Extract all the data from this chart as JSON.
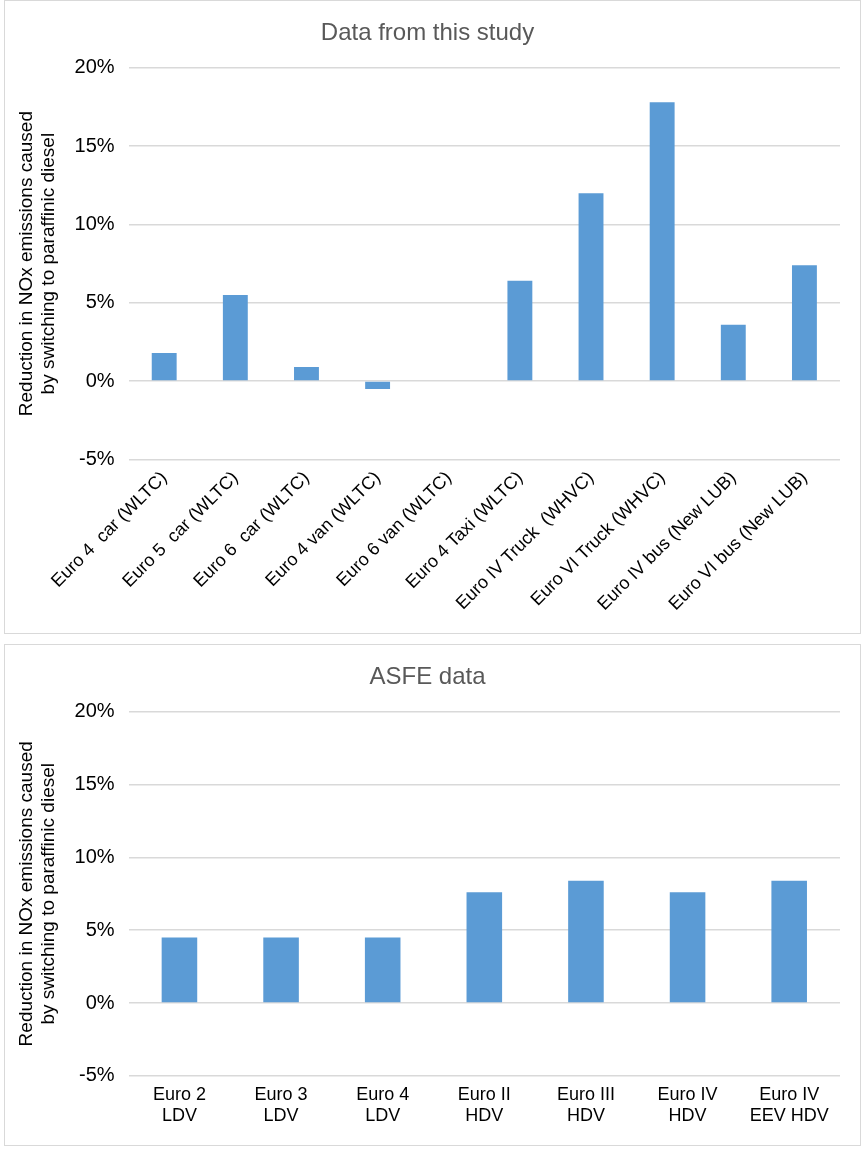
{
  "chart_data": [
    {
      "type": "bar",
      "title": "Data from this study",
      "ylabel": "Reduction in NOx emissions caused by switching to paraffinic diesel",
      "categories": [
        "Euro 4  car (WLTC)",
        "Euro 5  car (WLTC)",
        "Euro 6  car (WLTC)",
        "Euro 4 van (WLTC)",
        "Euro 6 van (WLTC)",
        "Euro 4 Taxi (WLTC)",
        "Euro IV Truck  (WHVC)",
        "Euro VI Truck (WHVC)",
        "Euro IV bus (New LUB)",
        "Euro VI bus (New LUB)"
      ],
      "values": [
        1.8,
        5.5,
        0.9,
        -0.5,
        null,
        6.4,
        12.0,
        17.8,
        3.6,
        7.4
      ],
      "color": "#5b9bd5",
      "ylim": [
        -5,
        20
      ],
      "yticks": [
        {
          "value": -5,
          "label": "-5%"
        },
        {
          "value": 0,
          "label": "0%"
        },
        {
          "value": 5,
          "label": "5%"
        },
        {
          "value": 10,
          "label": "10%"
        },
        {
          "value": 15,
          "label": "15%"
        },
        {
          "value": 20,
          "label": "20%"
        }
      ],
      "grid": "y"
    },
    {
      "type": "bar",
      "title": "ASFE data",
      "ylabel": "Reduction in NOx emissions caused by switching to paraffinic diesel",
      "categories": [
        "Euro 2 LDV",
        "Euro 3 LDV",
        "Euro 4 LDV",
        "Euro II HDV",
        "Euro III HDV",
        "Euro IV HDV",
        "Euro IV EEV HDV"
      ],
      "values": [
        4.5,
        4.5,
        4.5,
        7.6,
        8.4,
        7.6,
        8.4
      ],
      "color": "#5b9bd5",
      "ylim": [
        -5,
        20
      ],
      "yticks": [
        {
          "value": -5,
          "label": "-5%"
        },
        {
          "value": 0,
          "label": "0%"
        },
        {
          "value": 5,
          "label": "5%"
        },
        {
          "value": 10,
          "label": "10%"
        },
        {
          "value": 15,
          "label": "15%"
        },
        {
          "value": 20,
          "label": "20%"
        }
      ],
      "grid": "y"
    }
  ]
}
